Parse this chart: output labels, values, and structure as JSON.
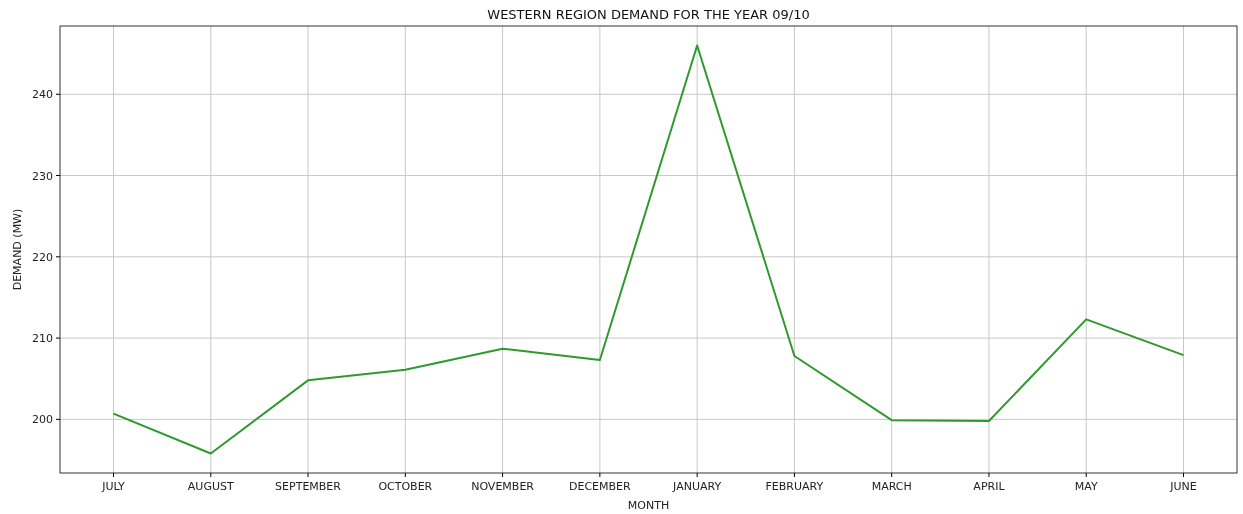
{
  "chart_data": {
    "type": "line",
    "title": "WESTERN REGION DEMAND FOR THE YEAR 09/10",
    "xlabel": "MONTH",
    "ylabel": "DEMAND (MW)",
    "categories": [
      "JULY",
      "AUGUST",
      "SEPTEMBER",
      "OCTOBER",
      "NOVEMBER",
      "DECEMBER",
      "JANUARY",
      "FEBRUARY",
      "MARCH",
      "APRIL",
      "MAY",
      "JUNE"
    ],
    "series": [
      {
        "color": "#2e9a2e",
        "values": [
          200.7,
          195.8,
          204.8,
          206.1,
          208.7,
          207.3,
          246.0,
          207.8,
          199.9,
          199.8,
          212.3,
          207.9
        ]
      }
    ],
    "ylim": [
      193.4,
      248.4
    ],
    "yticks": [
      200,
      210,
      220,
      230,
      240
    ],
    "grid": true
  }
}
